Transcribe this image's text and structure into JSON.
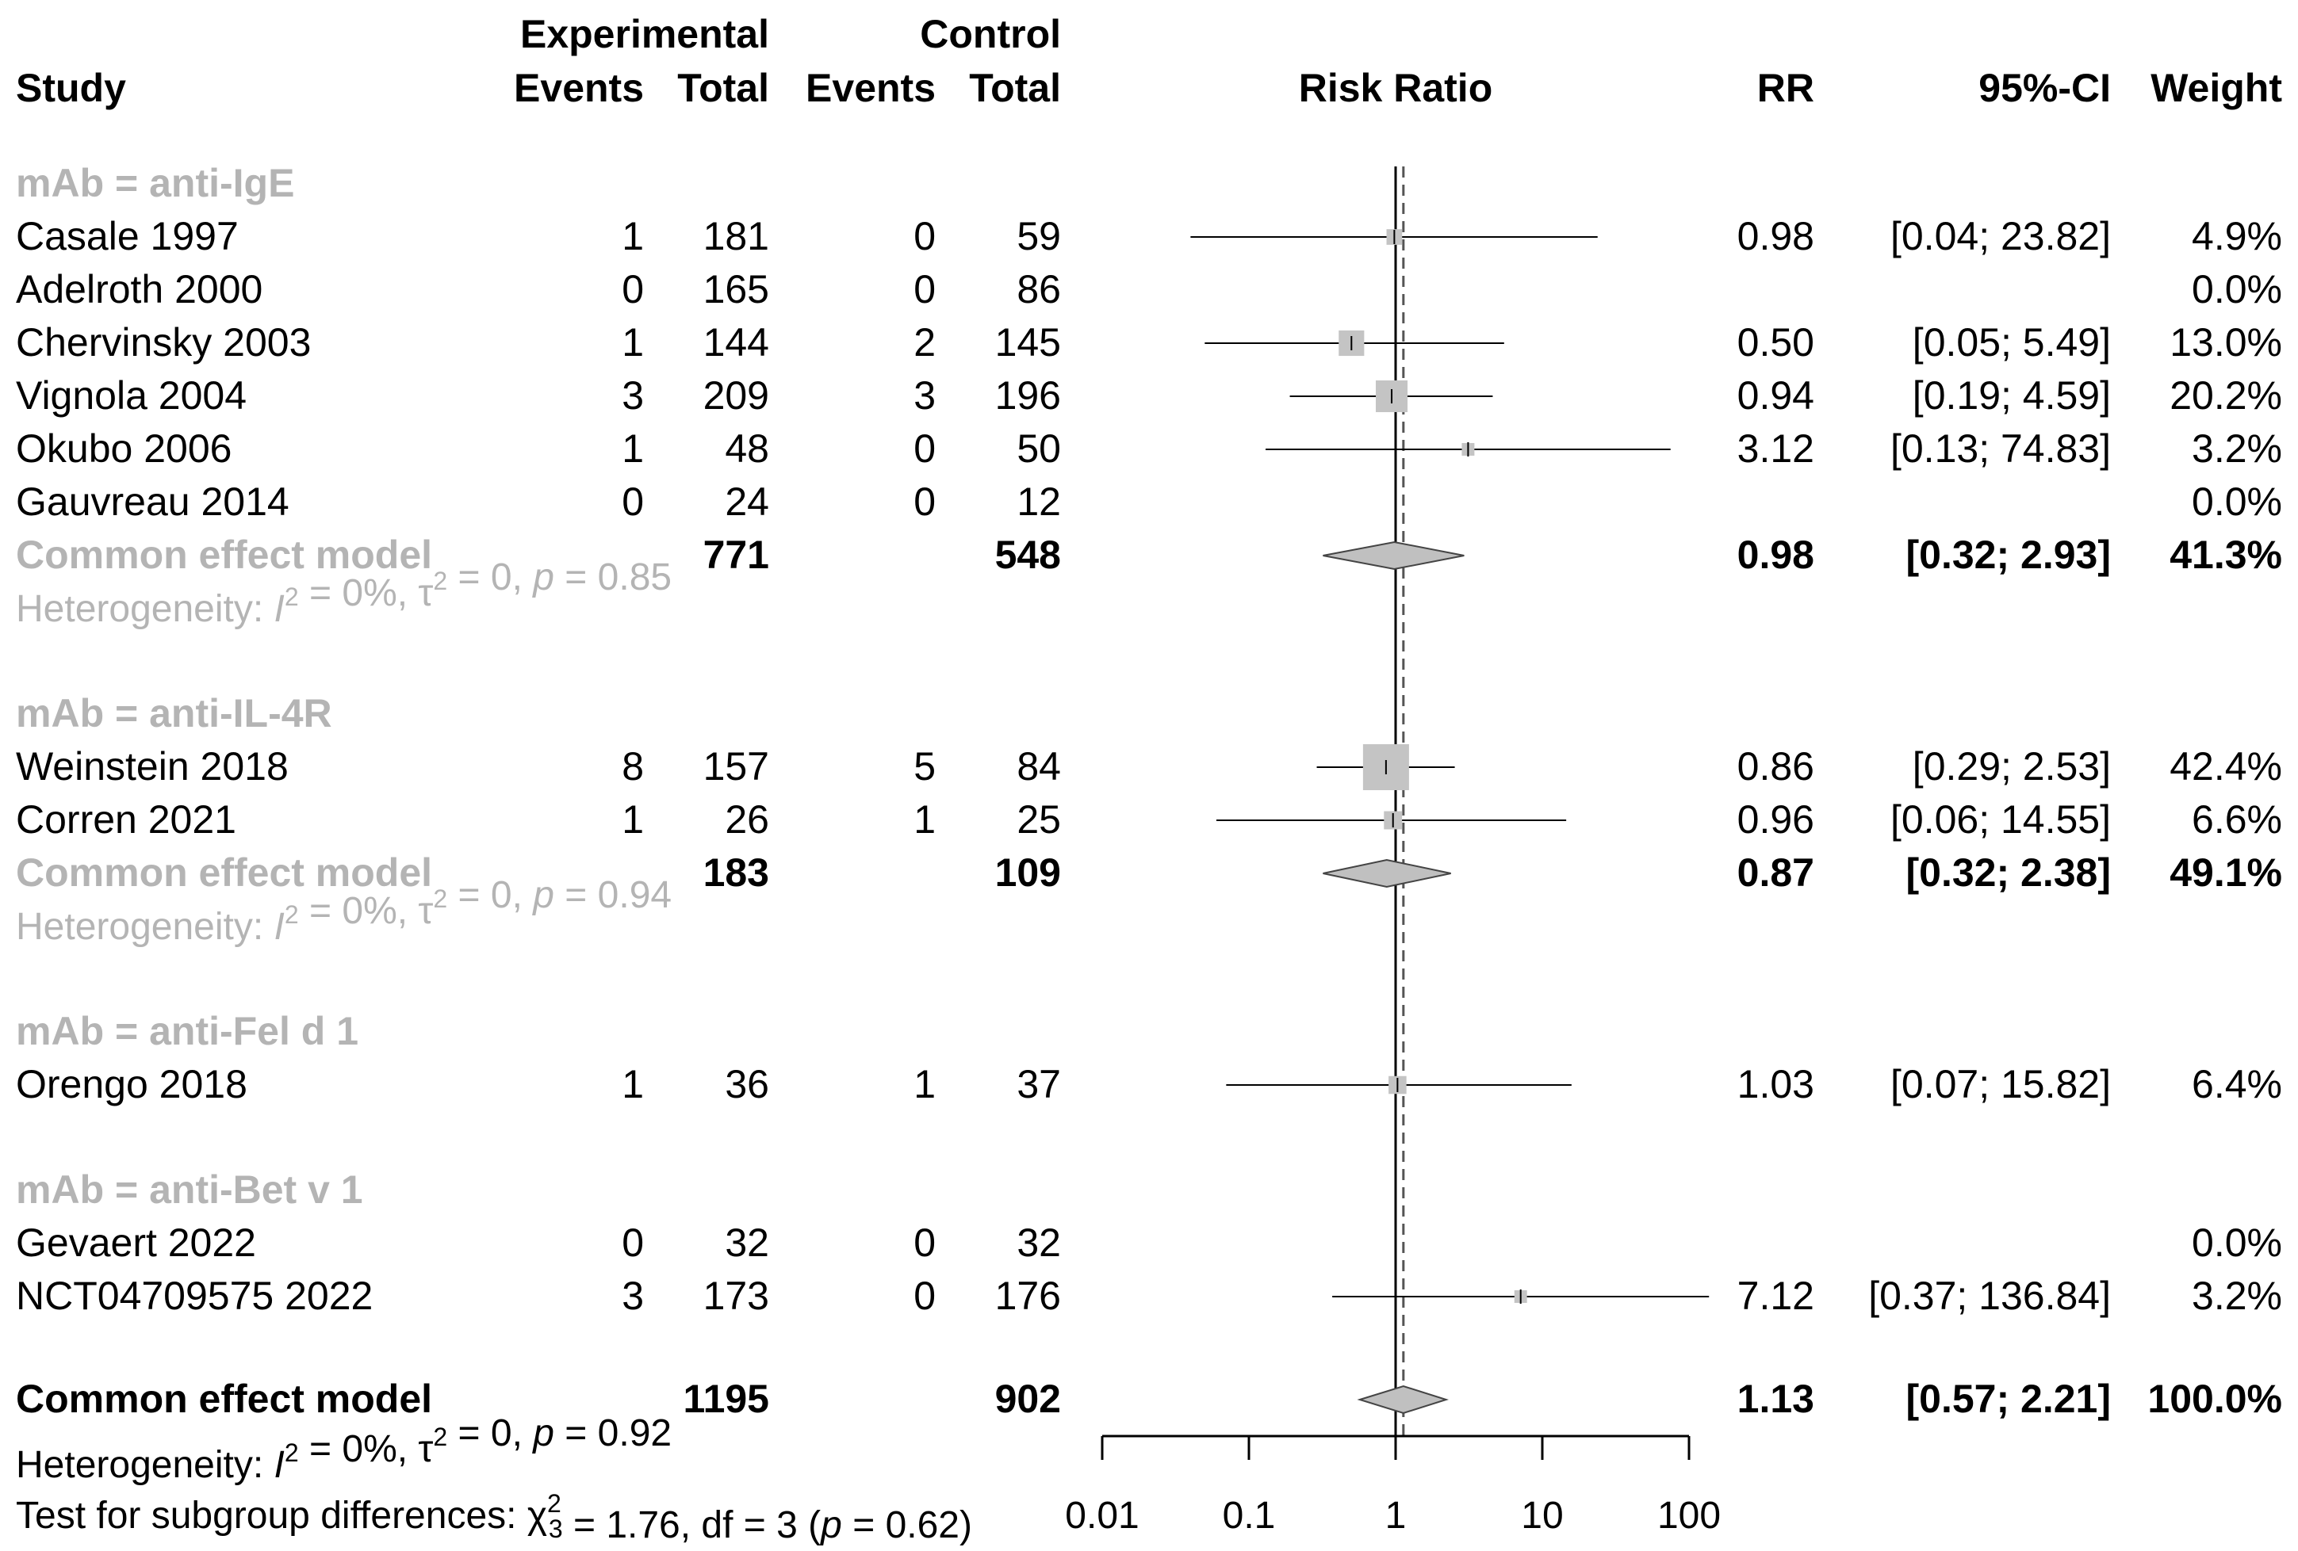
{
  "chart_data": {
    "type": "forest",
    "title": "Risk Ratio",
    "xscale": "log",
    "xlim": [
      0.01,
      100
    ],
    "x_ticks": [
      "0.01",
      "0.1",
      "1",
      "10",
      "100"
    ],
    "reference_line": 1,
    "overall_line": 1.13,
    "header": {
      "group1": "Experimental",
      "group2": "Control",
      "study": "Study",
      "events": "Events",
      "total": "Total",
      "plot_label": "Risk Ratio",
      "rr": "RR",
      "ci": "95%-CI",
      "weight": "Weight"
    },
    "subgroups": [
      {
        "label": "mAb = anti-IgE",
        "studies": [
          {
            "study": "Casale 1997",
            "e_events": "1",
            "e_total": "181",
            "c_events": "0",
            "c_total": "59",
            "rr": 0.98,
            "lo": 0.04,
            "hi": 23.82,
            "w": 4.9,
            "rr_text": "0.98",
            "ci_text": "[0.04;  23.82]",
            "weight_text": "4.9%"
          },
          {
            "study": "Adelroth 2000",
            "e_events": "0",
            "e_total": "165",
            "c_events": "0",
            "c_total": "86",
            "rr": null,
            "lo": null,
            "hi": null,
            "w": 0,
            "rr_text": "",
            "ci_text": "",
            "weight_text": "0.0%"
          },
          {
            "study": "Chervinsky 2003",
            "e_events": "1",
            "e_total": "144",
            "c_events": "2",
            "c_total": "145",
            "rr": 0.5,
            "lo": 0.05,
            "hi": 5.49,
            "w": 13.0,
            "rr_text": "0.50",
            "ci_text": "[0.05;    5.49]",
            "weight_text": "13.0%"
          },
          {
            "study": "Vignola 2004",
            "e_events": "3",
            "e_total": "209",
            "c_events": "3",
            "c_total": "196",
            "rr": 0.94,
            "lo": 0.19,
            "hi": 4.59,
            "w": 20.2,
            "rr_text": "0.94",
            "ci_text": "[0.19;    4.59]",
            "weight_text": "20.2%"
          },
          {
            "study": "Okubo 2006",
            "e_events": "1",
            "e_total": "48",
            "c_events": "0",
            "c_total": "50",
            "rr": 3.12,
            "lo": 0.13,
            "hi": 74.83,
            "w": 3.2,
            "rr_text": "3.12",
            "ci_text": "[0.13;  74.83]",
            "weight_text": "3.2%"
          },
          {
            "study": "Gauvreau 2014",
            "e_events": "0",
            "e_total": "24",
            "c_events": "0",
            "c_total": "12",
            "rr": null,
            "lo": null,
            "hi": null,
            "w": 0,
            "rr_text": "",
            "ci_text": "",
            "weight_text": "0.0%"
          }
        ],
        "pooled": {
          "label": "Common effect model",
          "e_total": "771",
          "c_total": "548",
          "rr": 0.98,
          "lo": 0.32,
          "hi": 2.93,
          "rr_text": "0.98",
          "ci_text": "[0.32;    2.93]",
          "weight_text": "41.3%"
        },
        "heterogeneity": {
          "prefix": "Heterogeneity: ",
          "i2": "= 0%",
          "tau2": "= 0",
          "p": "= 0.85"
        }
      },
      {
        "label": "mAb = anti-IL-4R",
        "studies": [
          {
            "study": "Weinstein 2018",
            "e_events": "8",
            "e_total": "157",
            "c_events": "5",
            "c_total": "84",
            "rr": 0.86,
            "lo": 0.29,
            "hi": 2.53,
            "w": 42.4,
            "rr_text": "0.86",
            "ci_text": "[0.29;    2.53]",
            "weight_text": "42.4%"
          },
          {
            "study": "Corren 2021",
            "e_events": "1",
            "e_total": "26",
            "c_events": "1",
            "c_total": "25",
            "rr": 0.96,
            "lo": 0.06,
            "hi": 14.55,
            "w": 6.6,
            "rr_text": "0.96",
            "ci_text": "[0.06;  14.55]",
            "weight_text": "6.6%"
          }
        ],
        "pooled": {
          "label": "Common effect model",
          "e_total": "183",
          "c_total": "109",
          "rr": 0.87,
          "lo": 0.32,
          "hi": 2.38,
          "rr_text": "0.87",
          "ci_text": "[0.32;    2.38]",
          "weight_text": "49.1%"
        },
        "heterogeneity": {
          "prefix": "Heterogeneity: ",
          "i2": "= 0%",
          "tau2": "= 0",
          "p": "= 0.94"
        }
      },
      {
        "label": "mAb = anti-Fel d 1",
        "studies": [
          {
            "study": "Orengo 2018",
            "e_events": "1",
            "e_total": "36",
            "c_events": "1",
            "c_total": "37",
            "rr": 1.03,
            "lo": 0.07,
            "hi": 15.82,
            "w": 6.4,
            "rr_text": "1.03",
            "ci_text": "[0.07;  15.82]",
            "weight_text": "6.4%"
          }
        ],
        "pooled": null,
        "heterogeneity": null
      },
      {
        "label": "mAb = anti-Bet v 1",
        "studies": [
          {
            "study": "Gevaert 2022",
            "e_events": "0",
            "e_total": "32",
            "c_events": "0",
            "c_total": "32",
            "rr": null,
            "lo": null,
            "hi": null,
            "w": 0,
            "rr_text": "",
            "ci_text": "",
            "weight_text": "0.0%"
          },
          {
            "study": "NCT04709575 2022",
            "e_events": "3",
            "e_total": "173",
            "c_events": "0",
            "c_total": "176",
            "rr": 7.12,
            "lo": 0.37,
            "hi": 136.84,
            "w": 3.2,
            "rr_text": "7.12",
            "ci_text": "[0.37; 136.84]",
            "weight_text": "3.2%"
          }
        ],
        "pooled": null,
        "heterogeneity": null
      }
    ],
    "overall": {
      "label": "Common effect model",
      "e_total": "1195",
      "c_total": "902",
      "rr": 1.13,
      "lo": 0.57,
      "hi": 2.21,
      "rr_text": "1.13",
      "ci_text": "[0.57;    2.21]",
      "weight_text": "100.0%"
    },
    "overall_heterogeneity": {
      "prefix": "Heterogeneity: ",
      "i2": "= 0%",
      "tau2": "= 0",
      "p": "= 0.92"
    },
    "subgroup_test": {
      "prefix": "Test for subgroup differences: ",
      "chi2": "= 1.76, df = 3 (",
      "p": "= 0.62)"
    }
  }
}
